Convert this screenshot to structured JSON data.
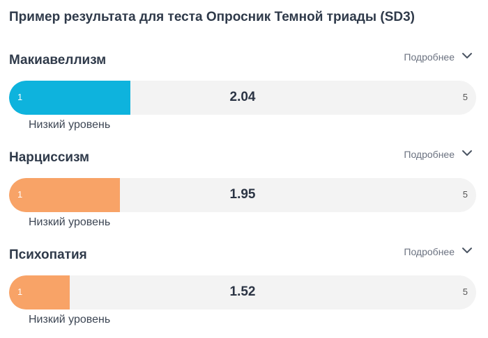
{
  "title": "Пример результата для теста Опросник Темной триады (SD3)",
  "details_label": "Подробнее",
  "scales": [
    {
      "name": "Макиавеллизм",
      "score": "2.04",
      "value": 2.04,
      "min": "1",
      "max": "5",
      "level": "Низкий уровень",
      "color": "#0eb3dd"
    },
    {
      "name": "Нарциссизм",
      "score": "1.95",
      "value": 1.95,
      "min": "1",
      "max": "5",
      "level": "Низкий уровень",
      "color": "#f8a367"
    },
    {
      "name": "Психопатия",
      "score": "1.52",
      "value": 1.52,
      "min": "1",
      "max": "5",
      "level": "Низкий уровень",
      "color": "#f8a367"
    }
  ]
}
